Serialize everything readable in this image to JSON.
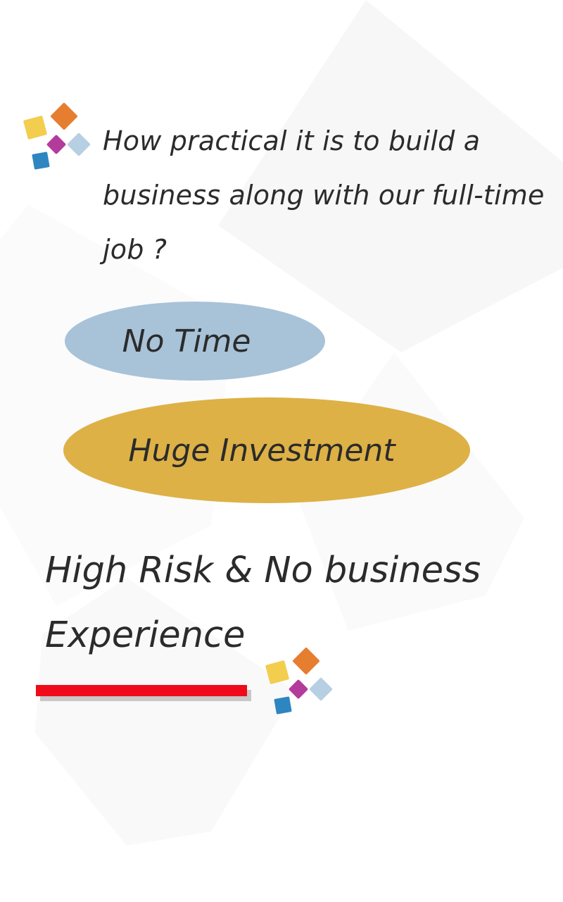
{
  "question": {
    "line1": "How practical it is to build a",
    "line2": "business along with our full-time",
    "line3": "job ?"
  },
  "concerns": {
    "no_time": "No Time",
    "huge_investment": "Huge Investment"
  },
  "risk": {
    "line1": "High Risk & No business",
    "line2": "Experience"
  },
  "colors": {
    "no_time_fill": "#a8c2d8",
    "investment_fill": "#ddb146",
    "underline": "#ef0b1b",
    "text": "#2b2b2b"
  },
  "icons": {
    "logo": "colored-tiles-logo-icon"
  }
}
